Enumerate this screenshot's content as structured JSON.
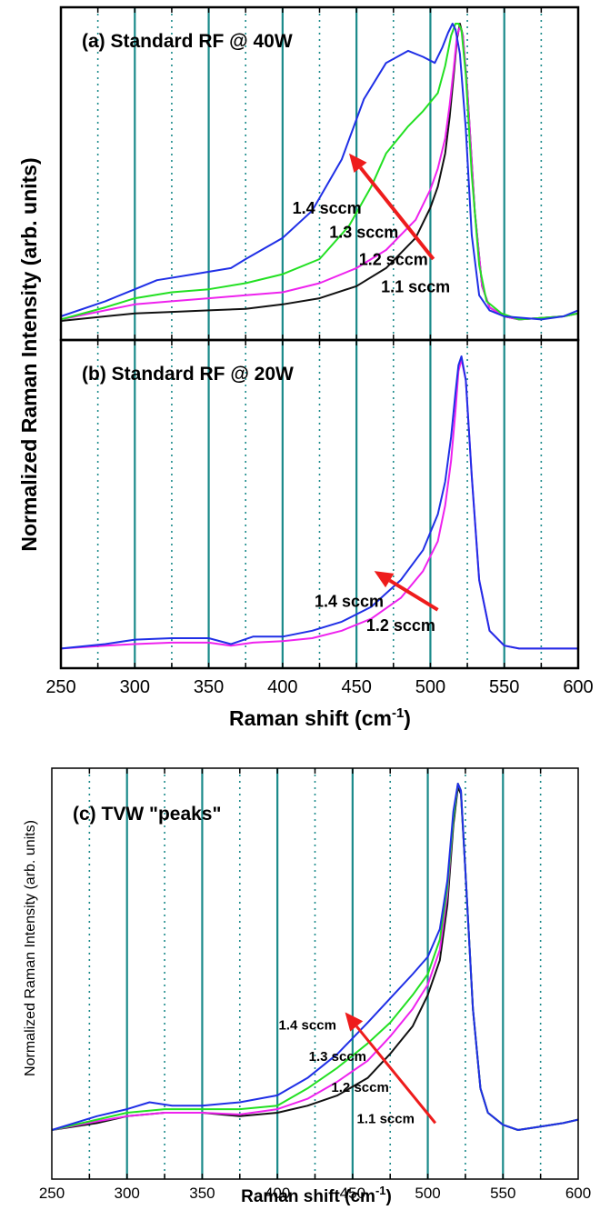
{
  "colors": {
    "series_1_4": "#1f2fe6",
    "series_1_3": "#22e022",
    "series_1_2": "#ee22ee",
    "series_1_1": "#111111",
    "arrow": "#ee1c1c",
    "solid_grid": "#1a8a8a",
    "dotted_grid": "#1a8a8a"
  },
  "chart_data": [
    {
      "id": "a",
      "type": "line",
      "title": "(a) Standard RF @ 40W",
      "xlabel": "",
      "ylabel": "",
      "xlim": [
        250,
        600
      ],
      "ylim": [
        0,
        1
      ],
      "solid_grid_x": [
        300,
        350,
        400,
        450,
        500,
        550
      ],
      "dotted_grid_x": [
        275,
        325,
        375,
        425,
        475,
        525,
        575
      ],
      "x_tick_labels": [],
      "series": [
        {
          "name": "1.1 sccm",
          "color": "#111111",
          "x": [
            250,
            280,
            300,
            325,
            350,
            375,
            400,
            425,
            450,
            470,
            490,
            500,
            505,
            510,
            513,
            516,
            518,
            520,
            522,
            525,
            530,
            535,
            540,
            550,
            560,
            575,
            590,
            600
          ],
          "y": [
            0.015,
            0.03,
            0.04,
            0.045,
            0.05,
            0.055,
            0.07,
            0.09,
            0.13,
            0.19,
            0.29,
            0.39,
            0.46,
            0.57,
            0.69,
            0.84,
            0.95,
            1.0,
            0.96,
            0.78,
            0.38,
            0.13,
            0.06,
            0.03,
            0.02,
            0.025,
            0.03,
            0.04
          ]
        },
        {
          "name": "1.2 sccm",
          "color": "#ee22ee",
          "x": [
            250,
            280,
            300,
            325,
            350,
            375,
            400,
            425,
            450,
            470,
            490,
            500,
            505,
            510,
            513,
            516,
            518,
            520,
            522,
            525,
            530,
            535,
            540,
            550,
            560,
            575,
            590,
            600
          ],
          "y": [
            0.02,
            0.05,
            0.07,
            0.08,
            0.09,
            0.1,
            0.11,
            0.14,
            0.19,
            0.25,
            0.35,
            0.45,
            0.52,
            0.62,
            0.73,
            0.86,
            0.96,
            0.99,
            0.96,
            0.78,
            0.38,
            0.13,
            0.06,
            0.03,
            0.02,
            0.025,
            0.03,
            0.04
          ]
        },
        {
          "name": "1.3 sccm",
          "color": "#22e022",
          "x": [
            250,
            280,
            300,
            325,
            350,
            375,
            400,
            425,
            445,
            460,
            470,
            485,
            495,
            505,
            510,
            514,
            517,
            519,
            521,
            524,
            528,
            533,
            538,
            548,
            560,
            575,
            590,
            600
          ],
          "y": [
            0.02,
            0.06,
            0.09,
            0.11,
            0.12,
            0.14,
            0.17,
            0.22,
            0.33,
            0.46,
            0.57,
            0.66,
            0.71,
            0.77,
            0.86,
            0.96,
            1.0,
            1.0,
            0.98,
            0.83,
            0.5,
            0.2,
            0.08,
            0.04,
            0.02,
            0.025,
            0.03,
            0.04
          ]
        },
        {
          "name": "1.4 sccm",
          "color": "#1f2fe6",
          "x": [
            250,
            280,
            300,
            315,
            340,
            365,
            375,
            400,
            420,
            440,
            455,
            470,
            485,
            495,
            503,
            508,
            512,
            515,
            517,
            520,
            524,
            528,
            533,
            540,
            550,
            575,
            590,
            600
          ],
          "y": [
            0.03,
            0.08,
            0.12,
            0.15,
            0.17,
            0.19,
            0.22,
            0.29,
            0.38,
            0.55,
            0.75,
            0.87,
            0.91,
            0.89,
            0.87,
            0.92,
            0.97,
            1.0,
            0.98,
            0.9,
            0.65,
            0.3,
            0.1,
            0.05,
            0.03,
            0.02,
            0.03,
            0.05
          ]
        }
      ],
      "annotations": [
        {
          "text": "1.4 sccm",
          "x": 430,
          "y": 0.37
        },
        {
          "text": "1.3 sccm",
          "x": 455,
          "y": 0.29
        },
        {
          "text": "1.2 sccm",
          "x": 475,
          "y": 0.2
        },
        {
          "text": "1.1 sccm",
          "x": 490,
          "y": 0.11
        }
      ],
      "arrow": {
        "from": [
          502,
          0.22
        ],
        "to": [
          445,
          0.57
        ]
      }
    },
    {
      "id": "b",
      "type": "line",
      "title": "(b) Standard RF @ 20W",
      "xlabel": "Raman shift (cm-1)",
      "ylabel": "",
      "xlim": [
        250,
        600
      ],
      "ylim": [
        0,
        1
      ],
      "solid_grid_x": [
        300,
        350,
        400,
        450,
        500,
        550
      ],
      "dotted_grid_x": [
        275,
        325,
        375,
        425,
        475,
        525,
        575
      ],
      "x_tick_labels": [
        "250",
        "300",
        "350",
        "400",
        "450",
        "500",
        "550",
        "600"
      ],
      "series": [
        {
          "name": "1.2 sccm",
          "color": "#ee22ee",
          "x": [
            250,
            280,
            300,
            325,
            350,
            365,
            380,
            400,
            420,
            440,
            460,
            480,
            495,
            505,
            510,
            514,
            517,
            519,
            521,
            524,
            528,
            533,
            540,
            550,
            560,
            575,
            590,
            600
          ],
          "y": [
            0.02,
            0.03,
            0.035,
            0.04,
            0.04,
            0.03,
            0.04,
            0.045,
            0.055,
            0.08,
            0.12,
            0.19,
            0.28,
            0.38,
            0.5,
            0.65,
            0.82,
            0.95,
            0.99,
            0.92,
            0.6,
            0.25,
            0.08,
            0.03,
            0.02,
            0.02,
            0.02,
            0.02
          ]
        },
        {
          "name": "1.4 sccm",
          "color": "#1f2fe6",
          "x": [
            250,
            280,
            300,
            325,
            350,
            365,
            380,
            400,
            420,
            440,
            460,
            480,
            495,
            505,
            510,
            514,
            517,
            519,
            521,
            524,
            528,
            533,
            540,
            550,
            560,
            575,
            590,
            600
          ],
          "y": [
            0.02,
            0.035,
            0.05,
            0.055,
            0.055,
            0.035,
            0.06,
            0.06,
            0.08,
            0.11,
            0.16,
            0.25,
            0.35,
            0.47,
            0.58,
            0.73,
            0.88,
            0.97,
            1.0,
            0.92,
            0.6,
            0.25,
            0.08,
            0.03,
            0.02,
            0.02,
            0.02,
            0.02
          ]
        }
      ],
      "annotations": [
        {
          "text": "1.4 sccm",
          "x": 445,
          "y": 0.16
        },
        {
          "text": "1.2 sccm",
          "x": 480,
          "y": 0.08
        }
      ],
      "arrow": {
        "from": [
          505,
          0.15
        ],
        "to": [
          462,
          0.28
        ]
      }
    },
    {
      "id": "c",
      "type": "line",
      "title": "(c) TVW \"peaks\"",
      "xlabel": "Raman shift (cm-1)",
      "ylabel": "Normalized Raman Intensity (arb. units)",
      "xlim": [
        250,
        600
      ],
      "ylim": [
        0,
        1
      ],
      "solid_grid_x": [
        300,
        350,
        400,
        450,
        500,
        550
      ],
      "dotted_grid_x": [
        275,
        325,
        375,
        425,
        475,
        525,
        575
      ],
      "x_tick_labels": [
        "250",
        "300",
        "350",
        "400",
        "450",
        "500",
        "550",
        "600"
      ],
      "series": [
        {
          "name": "1.1 sccm",
          "color": "#111111",
          "x": [
            250,
            280,
            300,
            325,
            350,
            375,
            400,
            420,
            440,
            460,
            475,
            490,
            500,
            508,
            513,
            517,
            520,
            522,
            525,
            530,
            535,
            540,
            550,
            560,
            575,
            590,
            600
          ],
          "y": [
            0.0,
            0.02,
            0.04,
            0.05,
            0.05,
            0.04,
            0.05,
            0.07,
            0.1,
            0.15,
            0.22,
            0.3,
            0.39,
            0.49,
            0.65,
            0.88,
            0.99,
            0.97,
            0.75,
            0.35,
            0.12,
            0.05,
            0.015,
            0.0,
            0.01,
            0.02,
            0.03
          ]
        },
        {
          "name": "1.2 sccm",
          "color": "#ee22ee",
          "x": [
            250,
            280,
            300,
            325,
            350,
            375,
            400,
            420,
            440,
            460,
            475,
            490,
            500,
            508,
            513,
            517,
            520,
            522,
            525,
            530,
            535,
            540,
            550,
            560,
            575,
            590,
            600
          ],
          "y": [
            0.0,
            0.025,
            0.04,
            0.05,
            0.05,
            0.045,
            0.06,
            0.09,
            0.14,
            0.2,
            0.27,
            0.35,
            0.42,
            0.52,
            0.68,
            0.9,
            1.0,
            0.98,
            0.75,
            0.35,
            0.12,
            0.05,
            0.015,
            0.0,
            0.01,
            0.02,
            0.03
          ]
        },
        {
          "name": "1.3 sccm",
          "color": "#22e022",
          "x": [
            250,
            280,
            300,
            325,
            350,
            375,
            400,
            420,
            440,
            460,
            475,
            490,
            500,
            508,
            513,
            517,
            520,
            522,
            525,
            530,
            535,
            540,
            550,
            560,
            575,
            590,
            600
          ],
          "y": [
            0.0,
            0.03,
            0.05,
            0.06,
            0.06,
            0.06,
            0.07,
            0.12,
            0.18,
            0.25,
            0.31,
            0.39,
            0.45,
            0.55,
            0.7,
            0.9,
            1.0,
            0.98,
            0.75,
            0.35,
            0.12,
            0.05,
            0.015,
            0.0,
            0.01,
            0.02,
            0.03
          ]
        },
        {
          "name": "1.4 sccm",
          "color": "#1f2fe6",
          "x": [
            250,
            280,
            300,
            315,
            330,
            350,
            375,
            400,
            420,
            440,
            460,
            475,
            490,
            500,
            508,
            513,
            517,
            520,
            522,
            525,
            530,
            535,
            540,
            550,
            560,
            575,
            590,
            600
          ],
          "y": [
            0.0,
            0.04,
            0.06,
            0.08,
            0.07,
            0.07,
            0.08,
            0.1,
            0.15,
            0.22,
            0.31,
            0.38,
            0.45,
            0.5,
            0.58,
            0.72,
            0.92,
            1.0,
            0.98,
            0.75,
            0.35,
            0.12,
            0.05,
            0.015,
            0.0,
            0.01,
            0.02,
            0.03
          ]
        }
      ],
      "annotations": [
        {
          "text": "1.4 sccm",
          "x": 420,
          "y": 0.29
        },
        {
          "text": "1.3 sccm",
          "x": 440,
          "y": 0.2
        },
        {
          "text": "1.2 sccm",
          "x": 455,
          "y": 0.11
        },
        {
          "text": "1.1 sccm",
          "x": 472,
          "y": 0.02
        }
      ],
      "arrow": {
        "from": [
          505,
          0.02
        ],
        "to": [
          445,
          0.34
        ]
      }
    }
  ],
  "shared": {
    "ab_ylabel": "Normalized Raman Intensity (arb. units)",
    "xlabel_main": "Raman shift (cm",
    "xlabel_sup": "-1",
    "xlabel_close": ")"
  }
}
